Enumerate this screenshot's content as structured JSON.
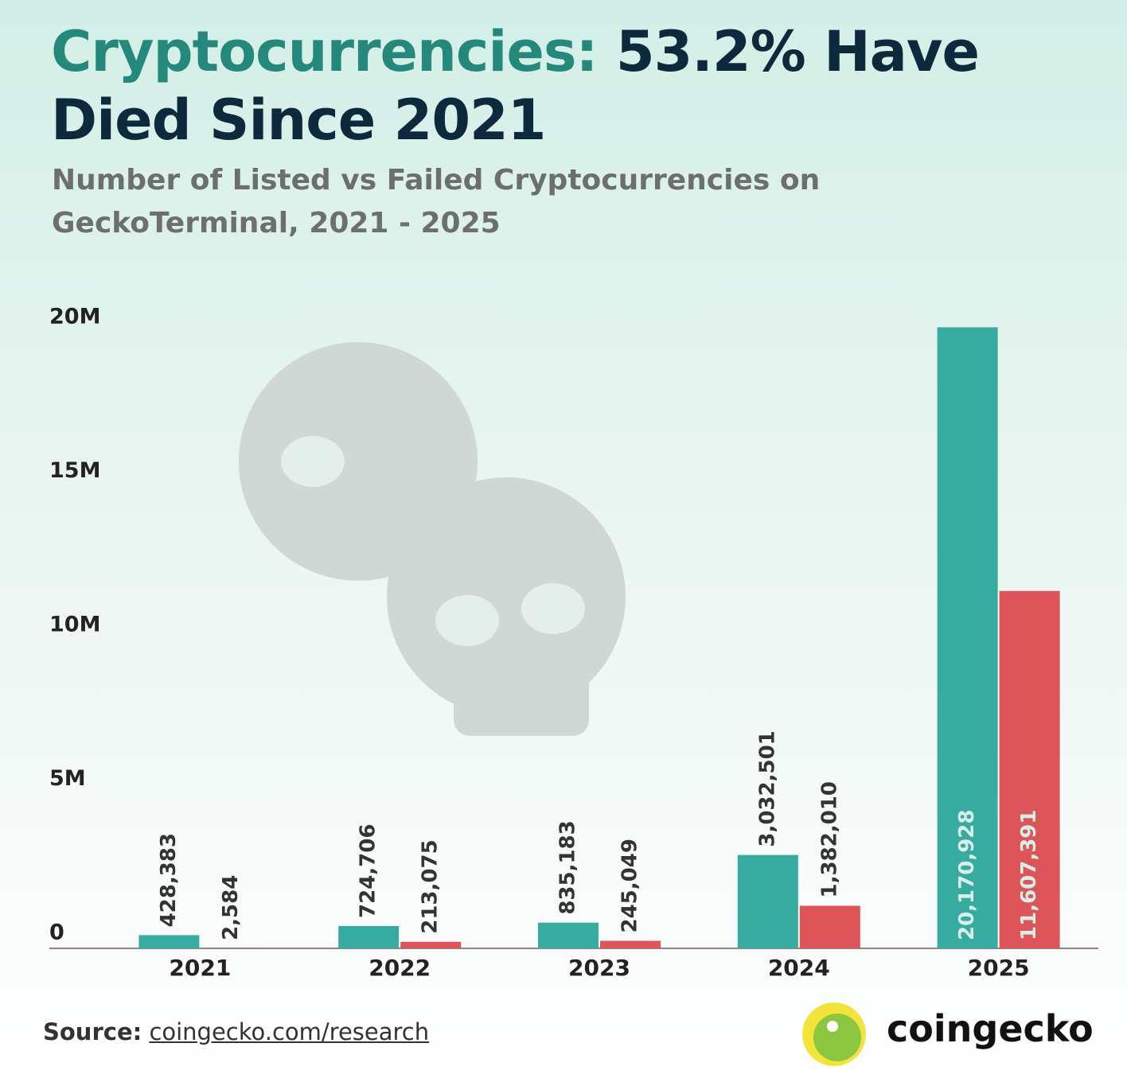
{
  "chart_data": {
    "type": "bar",
    "title_lead": "Cryptocurrencies:",
    "title": "53.2% Have Died Since 2021",
    "subtitle": "Number of Listed vs Failed Cryptocurrencies on GeckoTerminal, 2021 - 2025",
    "categories": [
      "2021",
      "2022",
      "2023",
      "2024",
      "2025"
    ],
    "series": [
      {
        "color": "#37ab9f",
        "values": [
          428383,
          724706,
          835183,
          3032501,
          20170928
        ],
        "value_labels": [
          "428,383",
          "724,706",
          "835,183",
          "3,032,501",
          "20,170,928"
        ]
      },
      {
        "color": "#dd5558",
        "values": [
          2584,
          213075,
          245049,
          1382010,
          11607391
        ],
        "value_labels": [
          "2,584",
          "213,075",
          "245,049",
          "1,382,010",
          "11,607,391"
        ]
      }
    ],
    "ylim": [
      0,
      20000000
    ],
    "yticks": [
      0,
      {
        "value": 5000000,
        "label": "5M"
      },
      {
        "value": 10000000,
        "label": "10M"
      },
      {
        "value": 15000000,
        "label": "15M"
      },
      {
        "value": 20000000,
        "label": "20M"
      }
    ],
    "grid": false
  },
  "footer": {
    "source_label": "Source:",
    "source_link": "coingecko.com/research",
    "brand": "coingecko"
  }
}
